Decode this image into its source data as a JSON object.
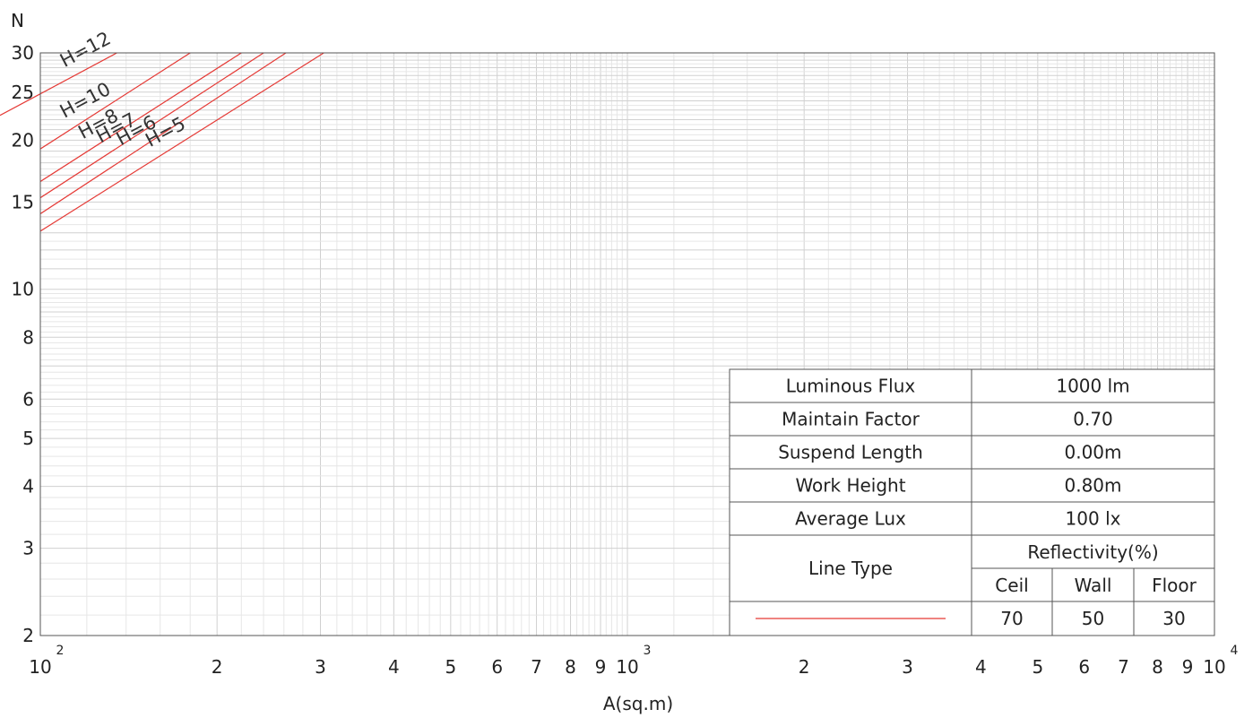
{
  "chart_data": {
    "type": "line",
    "xlabel": "A(sq.m)",
    "ylabel": "N",
    "xscale": "log",
    "yscale": "log",
    "xlim": [
      100,
      10000
    ],
    "ylim": [
      2,
      30
    ],
    "x_ticks": [
      {
        "v": 100,
        "label": "10",
        "sup": "2"
      },
      {
        "v": 200,
        "label": "2"
      },
      {
        "v": 300,
        "label": "3"
      },
      {
        "v": 400,
        "label": "4"
      },
      {
        "v": 500,
        "label": "5"
      },
      {
        "v": 600,
        "label": "6"
      },
      {
        "v": 700,
        "label": "7"
      },
      {
        "v": 800,
        "label": "8"
      },
      {
        "v": 900,
        "label": "9"
      },
      {
        "v": 1000,
        "label": "10",
        "sup": "3"
      },
      {
        "v": 2000,
        "label": "2"
      },
      {
        "v": 3000,
        "label": "3"
      },
      {
        "v": 4000,
        "label": "4"
      },
      {
        "v": 5000,
        "label": "5"
      },
      {
        "v": 6000,
        "label": "6"
      },
      {
        "v": 7000,
        "label": "7"
      },
      {
        "v": 8000,
        "label": "8"
      },
      {
        "v": 9000,
        "label": "9"
      },
      {
        "v": 10000,
        "label": "10",
        "sup": "4"
      }
    ],
    "y_ticks": [
      2,
      3,
      4,
      5,
      6,
      8,
      10,
      15,
      20,
      25,
      30
    ],
    "grid": true,
    "line_color": "#e53935",
    "series": [
      {
        "name": "H=5",
        "x": [
          100,
          304
        ],
        "y": [
          13.1,
          30
        ]
      },
      {
        "name": "H=6",
        "x": [
          100,
          262
        ],
        "y": [
          14.2,
          30
        ]
      },
      {
        "name": "H=7",
        "x": [
          100,
          240
        ],
        "y": [
          15.3,
          30
        ]
      },
      {
        "name": "H=8",
        "x": [
          100,
          220
        ],
        "y": [
          16.5,
          30
        ]
      },
      {
        "name": "H=10",
        "x": [
          100,
          180
        ],
        "y": [
          19.2,
          30
        ]
      },
      {
        "name": "H=12",
        "x": [
          100,
          135
        ],
        "y": [
          24.8,
          30
        ]
      }
    ]
  },
  "info_table": {
    "rows": [
      {
        "label": "Luminous Flux",
        "value": "1000 lm"
      },
      {
        "label": "Maintain Factor",
        "value": "0.70"
      },
      {
        "label": "Suspend Length",
        "value": "0.00m"
      },
      {
        "label": "Work Height",
        "value": "0.80m"
      },
      {
        "label": "Average Lux",
        "value": "100 lx"
      }
    ],
    "line_type_label": "Line Type",
    "reflectivity_label": "Reflectivity(%)",
    "refl_headers": [
      "Ceil",
      "Wall",
      "Floor"
    ],
    "refl_values": [
      "70",
      "50",
      "30"
    ]
  }
}
